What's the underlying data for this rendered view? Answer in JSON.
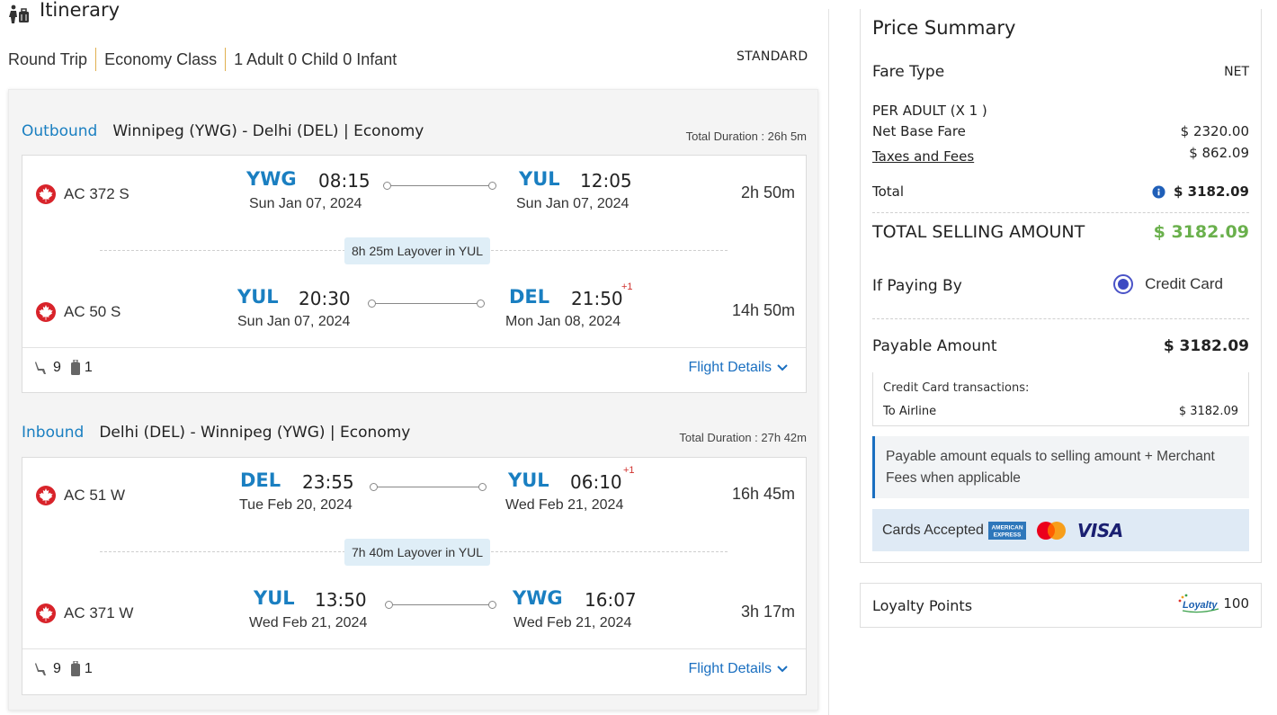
{
  "itinerary": {
    "title": "Itinerary",
    "trip_type": "Round Trip",
    "cabin_class": "Economy Class",
    "passengers": "1 Adult 0 Child 0 Infant",
    "fare_brand": "STANDARD"
  },
  "outbound": {
    "direction": "Outbound",
    "route": "Winnipeg (YWG) - Delhi (DEL) | Economy",
    "total_duration": "Total Duration : 26h 5m",
    "legs": [
      {
        "flight": "AC 372 S",
        "from_code": "YWG",
        "dep_time": "08:15",
        "dep_date": "Sun Jan 07, 2024",
        "to_code": "YUL",
        "arr_time": "12:05",
        "arr_date": "Sun Jan 07, 2024",
        "next_day": "",
        "duration": "2h 50m"
      },
      {
        "flight": "AC 50 S",
        "from_code": "YUL",
        "dep_time": "20:30",
        "dep_date": "Sun Jan 07, 2024",
        "to_code": "DEL",
        "arr_time": "21:50",
        "arr_date": "Mon Jan 08, 2024",
        "next_day": "+1",
        "duration": "14h 50m"
      }
    ],
    "layover": "8h 25m Layover in YUL",
    "seats": "9",
    "bags": "1",
    "details_link": "Flight Details"
  },
  "inbound": {
    "direction": "Inbound",
    "route": "Delhi (DEL) - Winnipeg (YWG) | Economy",
    "total_duration": "Total Duration : 27h 42m",
    "legs": [
      {
        "flight": "AC 51 W",
        "from_code": "DEL",
        "dep_time": "23:55",
        "dep_date": "Tue Feb 20, 2024",
        "to_code": "YUL",
        "arr_time": "06:10",
        "arr_date": "Wed Feb 21, 2024",
        "next_day": "+1",
        "duration": "16h 45m"
      },
      {
        "flight": "AC 371 W",
        "from_code": "YUL",
        "dep_time": "13:50",
        "dep_date": "Wed Feb 21, 2024",
        "to_code": "YWG",
        "arr_time": "16:07",
        "arr_date": "Wed Feb 21, 2024",
        "next_day": "",
        "duration": "3h 17m"
      }
    ],
    "layover": "7h 40m Layover in YUL",
    "seats": "9",
    "bags": "1",
    "details_link": "Flight Details"
  },
  "price_summary": {
    "title": "Price Summary",
    "fare_type_label": "Fare Type",
    "fare_type_value": "NET",
    "per_adult_label": "PER ADULT (X 1 )",
    "net_base_fare_label": "Net Base Fare",
    "net_base_fare_value": "$ 2320.00",
    "taxes_label": "Taxes and Fees",
    "taxes_value": "$ 862.09",
    "total_label": "Total",
    "total_value": "$ 3182.09",
    "tsa_label": "TOTAL SELLING AMOUNT",
    "tsa_value": "$ 3182.09",
    "paying_by_label": "If Paying By",
    "payment_method": "Credit Card",
    "payable_label": "Payable Amount",
    "payable_value": "$ 3182.09",
    "cc_title": "Credit Card transactions:",
    "cc_to_label": "To Airline",
    "cc_to_value": "$ 3182.09",
    "note": "Payable amount equals to selling amount + Merchant Fees when applicable",
    "cards_label": "Cards Accepted",
    "visa_text": "VISA",
    "amex_text_1": "AMERICAN",
    "amex_text_2": "EXPRESS"
  },
  "loyalty": {
    "label": "Loyalty Points",
    "value": "100",
    "logo_text": "Loyalty"
  },
  "colors": {
    "accent_blue": "#1a7fc1",
    "link_blue": "#1a6fc0",
    "total_green": "#6ab04c",
    "next_day_red": "#d0312d",
    "air_canada_red": "#d8232a"
  },
  "icons": [
    "traveler-luggage-icon",
    "air-canada-maple-leaf-icon",
    "seat-icon",
    "baggage-icon",
    "chevron-down-icon",
    "info-icon",
    "amex-logo",
    "mastercard-logo",
    "visa-logo",
    "loyalty-logo"
  ]
}
